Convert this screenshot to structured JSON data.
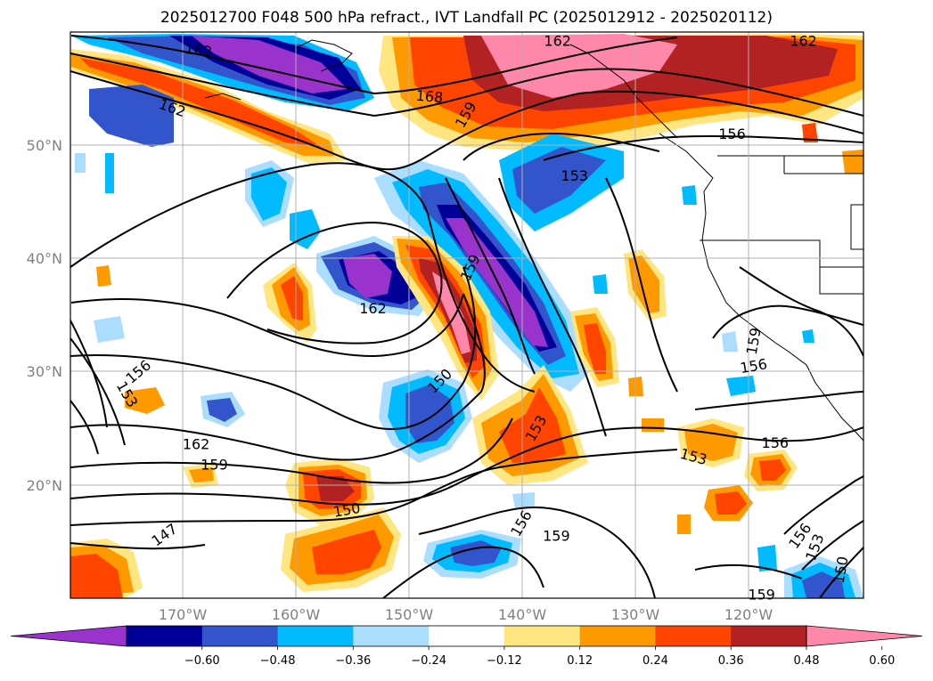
{
  "title": "2025012700 F048 500 hPa refract., IVT Landfall PC (2025012912 - 2025020112)",
  "lat_labels": [
    "50°N",
    "40°N",
    "30°N",
    "20°N"
  ],
  "lon_labels": [
    "170°W",
    "160°W",
    "150°W",
    "140°W",
    "130°W",
    "120°W"
  ],
  "colorbar": {
    "colors": [
      "#9933cc",
      "#000099",
      "#3355cc",
      "#00bbff",
      "#aaddff",
      "#ffffff",
      "#ffe680",
      "#ff9900",
      "#ff4400",
      "#b22222",
      "#ff88aa"
    ],
    "labels": [
      "−0.60",
      "−0.48",
      "−0.36",
      "−0.24",
      "−0.12",
      "0.12",
      "0.24",
      "0.36",
      "0.48",
      "0.60"
    ]
  },
  "contour_labels": [
    {
      "text": "162",
      "lon": -168.7,
      "lat": 58.4,
      "rot": 8
    },
    {
      "text": "168",
      "lon": -148.3,
      "lat": 54.3,
      "rot": 5
    },
    {
      "text": "162",
      "lon": -171.0,
      "lat": 53.3,
      "rot": 20
    },
    {
      "text": "159",
      "lon": -145.1,
      "lat": 52.7,
      "rot": -60
    },
    {
      "text": "162",
      "lon": -137.0,
      "lat": 59.2,
      "rot": 0
    },
    {
      "text": "162",
      "lon": -115.3,
      "lat": 59.2,
      "rot": 0
    },
    {
      "text": "156",
      "lon": -121.6,
      "lat": 51.0,
      "rot": 0
    },
    {
      "text": "153",
      "lon": -135.5,
      "lat": 47.3,
      "rot": 0
    },
    {
      "text": "159",
      "lon": -144.7,
      "lat": 39.2,
      "rot": -65
    },
    {
      "text": "162",
      "lon": -153.3,
      "lat": 35.6,
      "rot": 0
    },
    {
      "text": "156",
      "lon": -174.0,
      "lat": 30.0,
      "rot": -40
    },
    {
      "text": "153",
      "lon": -175.0,
      "lat": 28.0,
      "rot": 60
    },
    {
      "text": "150",
      "lon": -147.4,
      "lat": 29.2,
      "rot": -45
    },
    {
      "text": "153",
      "lon": -138.9,
      "lat": 25.0,
      "rot": -60
    },
    {
      "text": "162",
      "lon": -168.9,
      "lat": 23.6,
      "rot": 0
    },
    {
      "text": "159",
      "lon": -167.3,
      "lat": 21.8,
      "rot": 0
    },
    {
      "text": "153",
      "lon": -125.0,
      "lat": 22.5,
      "rot": 15
    },
    {
      "text": "156",
      "lon": -117.8,
      "lat": 23.7,
      "rot": 0
    },
    {
      "text": "150",
      "lon": -155.6,
      "lat": 17.8,
      "rot": -10
    },
    {
      "text": "147",
      "lon": -171.7,
      "lat": 15.6,
      "rot": -35
    },
    {
      "text": "156",
      "lon": -140.2,
      "lat": 16.6,
      "rot": -60
    },
    {
      "text": "159",
      "lon": -137.1,
      "lat": 15.5,
      "rot": 0
    },
    {
      "text": "159",
      "lon": -119.7,
      "lat": 32.7,
      "rot": -80
    },
    {
      "text": "156",
      "lon": -119.7,
      "lat": 30.5,
      "rot": -10
    },
    {
      "text": "156",
      "lon": -115.6,
      "lat": 15.5,
      "rot": -55
    },
    {
      "text": "153",
      "lon": -114.3,
      "lat": 14.5,
      "rot": -70
    },
    {
      "text": "150",
      "lon": -112.0,
      "lat": 12.5,
      "rot": -80
    },
    {
      "text": "159",
      "lon": -119.0,
      "lat": 10.3,
      "rot": 0
    }
  ]
}
